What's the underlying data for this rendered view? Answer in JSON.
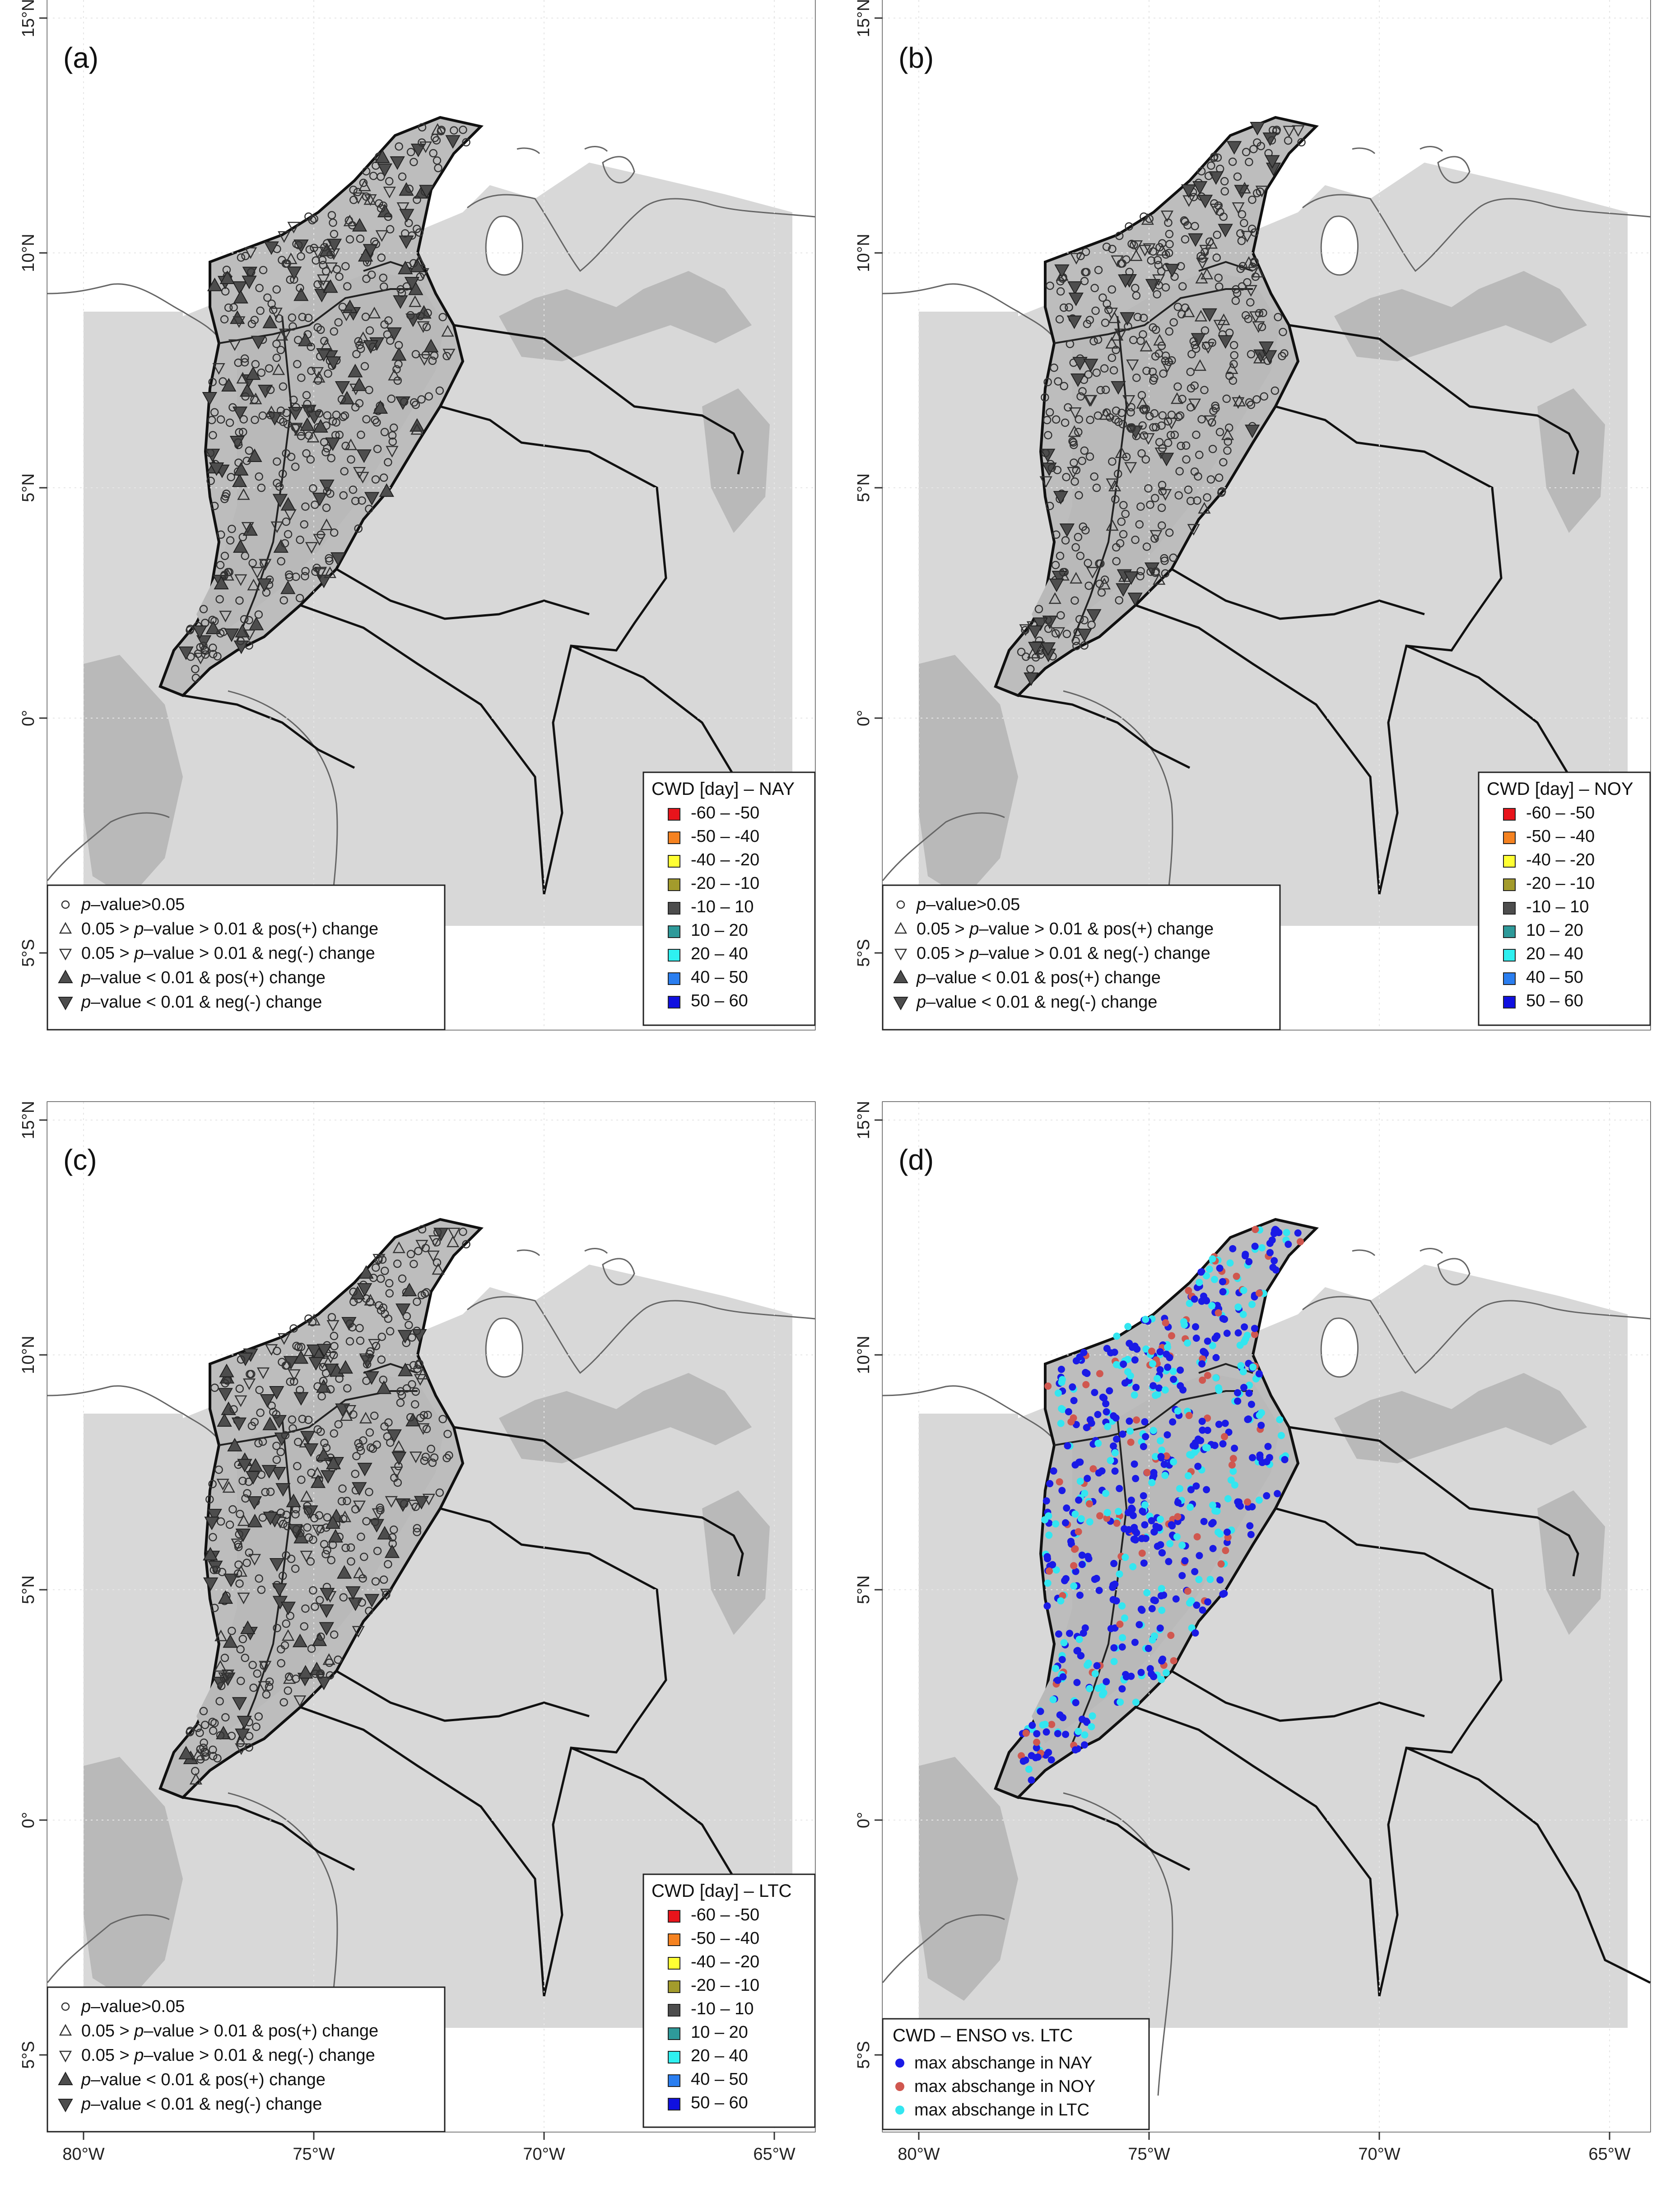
{
  "figure": {
    "panels": [
      {
        "label": "(a)",
        "legend_title": "CWD [day] – NAY",
        "legend_kind": "range"
      },
      {
        "label": "(b)",
        "legend_title": "CWD [day] – NOY",
        "legend_kind": "range"
      },
      {
        "label": "(c)",
        "legend_title": "CWD [day] – LTC",
        "legend_kind": "range"
      },
      {
        "label": "(d)",
        "legend_title": "CWD – ENSO vs. LTC",
        "legend_kind": "enso"
      }
    ],
    "lat_ticks": [
      "15°N",
      "10°N",
      "5°N",
      "0°",
      "5°S"
    ],
    "lon_ticks": [
      "80°W",
      "75°W",
      "70°W",
      "65°W"
    ],
    "range_legend": [
      {
        "label": "-60 – -50",
        "color": "#e8141b"
      },
      {
        "label": "-50 – -40",
        "color": "#f58220"
      },
      {
        "label": "-40 – -20",
        "color": "#ffff33"
      },
      {
        "label": "-20 – -10",
        "color": "#a39b2c"
      },
      {
        "label": "-10 – 10",
        "color": "#4d4d4d"
      },
      {
        "label": "10 – 20",
        "color": "#2e9a9a"
      },
      {
        "label": "20 – 40",
        "color": "#2ef0f0"
      },
      {
        "label": "40 – 50",
        "color": "#2a7ef0"
      },
      {
        "label": "50 – 60",
        "color": "#1010e0"
      }
    ],
    "significance_legend": [
      {
        "symbol": "circle-open",
        "prefix": "",
        "italic": "p",
        "rest": "–value>0.05"
      },
      {
        "symbol": "triangle-up-open",
        "prefix": "0.05 > ",
        "italic": "p",
        "rest": "–value > 0.01 & pos(+) change"
      },
      {
        "symbol": "triangle-down-open",
        "prefix": "0.05 > ",
        "italic": "p",
        "rest": "–value > 0.01 & neg(-) change"
      },
      {
        "symbol": "triangle-up-filled",
        "prefix": "",
        "italic": "p",
        "rest": "–value < 0.01 & pos(+) change"
      },
      {
        "symbol": "triangle-down-filled",
        "prefix": "",
        "italic": "p",
        "rest": "–value < 0.01 & neg(-) change"
      }
    ],
    "enso_legend": [
      {
        "label": "max abschange in NAY",
        "color": "#1a1ae6"
      },
      {
        "label": "max abschange in NOY",
        "color": "#d0574f"
      },
      {
        "label": "max abschange in LTC",
        "color": "#33e6f0"
      }
    ]
  }
}
